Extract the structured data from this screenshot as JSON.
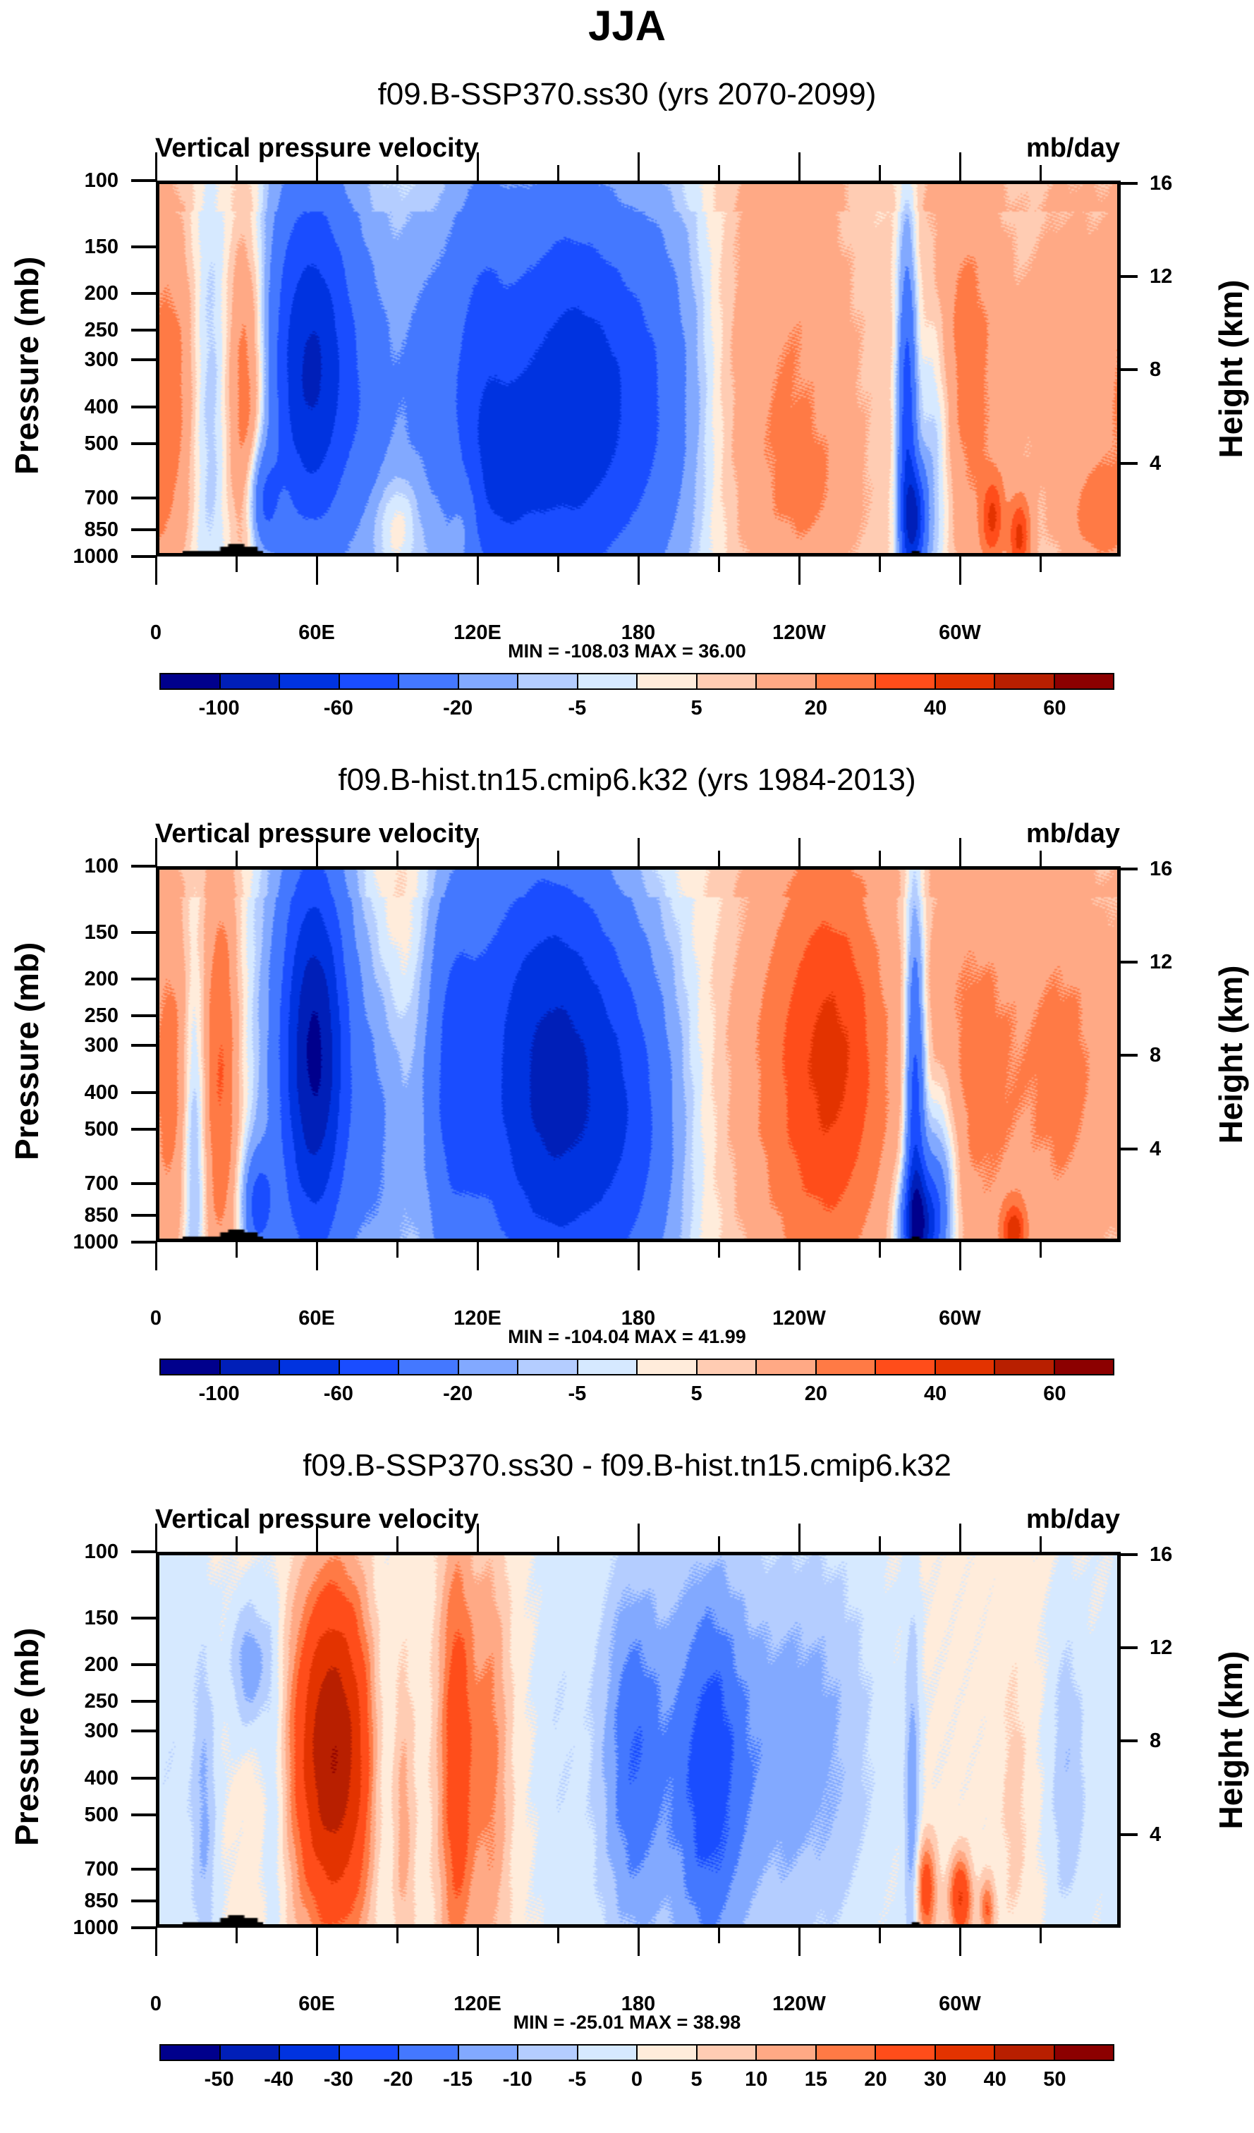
{
  "title": "JJA",
  "chart_data": [
    {
      "type": "heatmap",
      "title": "f09.B-SSP370.ss30 (yrs 2070-2099)",
      "left_string": "Vertical pressure velocity",
      "right_string": "mb/day",
      "xlabel": "",
      "ylabel": "Pressure (mb)",
      "ylabel_right": "Height (km)",
      "x_ticks": [
        "0",
        "60E",
        "120E",
        "180",
        "120W",
        "60W"
      ],
      "x_range": [
        0,
        360
      ],
      "y_ticks": [
        "100",
        "150",
        "200",
        "250",
        "300",
        "400",
        "500",
        "700",
        "850",
        "1000"
      ],
      "y_range_mb": [
        1000,
        100
      ],
      "y_ticks_right": [
        "16",
        "12",
        "8",
        "4"
      ],
      "min_max_text": "MIN = -108.03  MAX =  36.00",
      "min": -108.03,
      "max": 36.0,
      "colorbar_labels": [
        "-100",
        "-60",
        "-20",
        "-5",
        "5",
        "20",
        "40",
        "60"
      ],
      "contour_levels": [
        -100,
        -80,
        -60,
        -40,
        -20,
        -10,
        -5,
        0,
        5,
        10,
        20,
        30,
        40,
        50,
        60
      ],
      "features": [
        {
          "name": "Sahel/Africa upward (blue) near 60E",
          "lon": 55,
          "p_top": 150,
          "p_bottom": 700,
          "approx_value": -60
        },
        {
          "name": "Red descent near 30E",
          "lon": 32,
          "p_top": 200,
          "p_bottom": 850,
          "approx_value": 30
        },
        {
          "name": "West Pacific upward core",
          "lon": 155,
          "p_top": 200,
          "p_bottom": 850,
          "approx_value": -60
        },
        {
          "name": "East Pacific descent",
          "lon": 235,
          "p_top": 200,
          "p_bottom": 1000,
          "approx_value": 20
        },
        {
          "name": "Andes/Amazon narrow ascent",
          "lon": 285,
          "p_top": 200,
          "p_bottom": 1000,
          "approx_value": -80
        },
        {
          "name": "Atlantic descent",
          "lon": 305,
          "p_top": 200,
          "p_bottom": 900,
          "approx_value": 20
        }
      ]
    },
    {
      "type": "heatmap",
      "title": "f09.B-hist.tn15.cmip6.k32 (yrs 1984-2013)",
      "left_string": "Vertical pressure velocity",
      "right_string": "mb/day",
      "xlabel": "",
      "ylabel": "Pressure (mb)",
      "ylabel_right": "Height (km)",
      "x_ticks": [
        "0",
        "60E",
        "120E",
        "180",
        "120W",
        "60W"
      ],
      "x_range": [
        0,
        360
      ],
      "y_ticks": [
        "100",
        "150",
        "200",
        "250",
        "300",
        "400",
        "500",
        "700",
        "850",
        "1000"
      ],
      "y_range_mb": [
        1000,
        100
      ],
      "y_ticks_right": [
        "16",
        "12",
        "8",
        "4"
      ],
      "min_max_text": "MIN = -104.04  MAX =  41.99",
      "min": -104.04,
      "max": 41.99,
      "colorbar_labels": [
        "-100",
        "-60",
        "-20",
        "-5",
        "5",
        "20",
        "40",
        "60"
      ],
      "contour_levels": [
        -100,
        -80,
        -60,
        -40,
        -20,
        -10,
        -5,
        0,
        5,
        10,
        20,
        30,
        40,
        50,
        60
      ],
      "features": [
        {
          "name": "Upward core near 60E",
          "lon": 60,
          "p_top": 150,
          "p_bottom": 850,
          "approx_value": -80
        },
        {
          "name": "Red descent near 35E",
          "lon": 35,
          "p_top": 200,
          "p_bottom": 850,
          "approx_value": 30
        },
        {
          "name": "West Pacific upward core",
          "lon": 145,
          "p_top": 200,
          "p_bottom": 850,
          "approx_value": -60
        },
        {
          "name": "East Pacific descent",
          "lon": 240,
          "p_top": 200,
          "p_bottom": 1000,
          "approx_value": 30
        },
        {
          "name": "Amazon narrow ascent",
          "lon": 285,
          "p_top": 150,
          "p_bottom": 1000,
          "approx_value": -80
        },
        {
          "name": "Atlantic descent",
          "lon": 320,
          "p_top": 200,
          "p_bottom": 900,
          "approx_value": 20
        }
      ]
    },
    {
      "type": "heatmap",
      "title": "f09.B-SSP370.ss30 - f09.B-hist.tn15.cmip6.k32",
      "left_string": "Vertical pressure velocity",
      "right_string": "mb/day",
      "xlabel": "",
      "ylabel": "Pressure (mb)",
      "ylabel_right": "Height (km)",
      "x_ticks": [
        "0",
        "60E",
        "120E",
        "180",
        "120W",
        "60W"
      ],
      "x_range": [
        0,
        360
      ],
      "y_ticks": [
        "100",
        "150",
        "200",
        "250",
        "300",
        "400",
        "500",
        "700",
        "850",
        "1000"
      ],
      "y_range_mb": [
        1000,
        100
      ],
      "y_ticks_right": [
        "16",
        "12",
        "8",
        "4"
      ],
      "min_max_text": "MIN = -25.01  MAX =  38.98",
      "min": -25.01,
      "max": 38.98,
      "colorbar_labels": [
        "-50",
        "-40",
        "-30",
        "-20",
        "-15",
        "-10",
        "-5",
        "0",
        "5",
        "10",
        "15",
        "20",
        "30",
        "40",
        "50"
      ],
      "contour_levels": [
        -50,
        -40,
        -30,
        -20,
        -15,
        -10,
        -5,
        0,
        5,
        10,
        15,
        20,
        30,
        40,
        50
      ],
      "features": [
        {
          "name": "Positive difference near 65E",
          "lon": 65,
          "p_top": 200,
          "p_bottom": 850,
          "approx_value": 35
        },
        {
          "name": "Positive difference near 120E",
          "lon": 120,
          "p_top": 250,
          "p_bottom": 900,
          "approx_value": 25
        },
        {
          "name": "Negative difference near 180",
          "lon": 180,
          "p_top": 200,
          "p_bottom": 900,
          "approx_value": -20
        },
        {
          "name": "Negative difference near 150W",
          "lon": 210,
          "p_top": 300,
          "p_bottom": 950,
          "approx_value": -20
        },
        {
          "name": "Positive low-level near 65W",
          "lon": 290,
          "p_top": 700,
          "p_bottom": 1000,
          "approx_value": 25
        }
      ]
    }
  ],
  "colorbar_colors": [
    "#00008c",
    "#001fb8",
    "#0033e0",
    "#1a4dff",
    "#4478ff",
    "#82a9ff",
    "#b4cdff",
    "#d6e9ff",
    "#ffecdb",
    "#ffccb3",
    "#ffa985",
    "#ff7a45",
    "#ff4d1a",
    "#e33300",
    "#b81f00",
    "#8c0000"
  ]
}
